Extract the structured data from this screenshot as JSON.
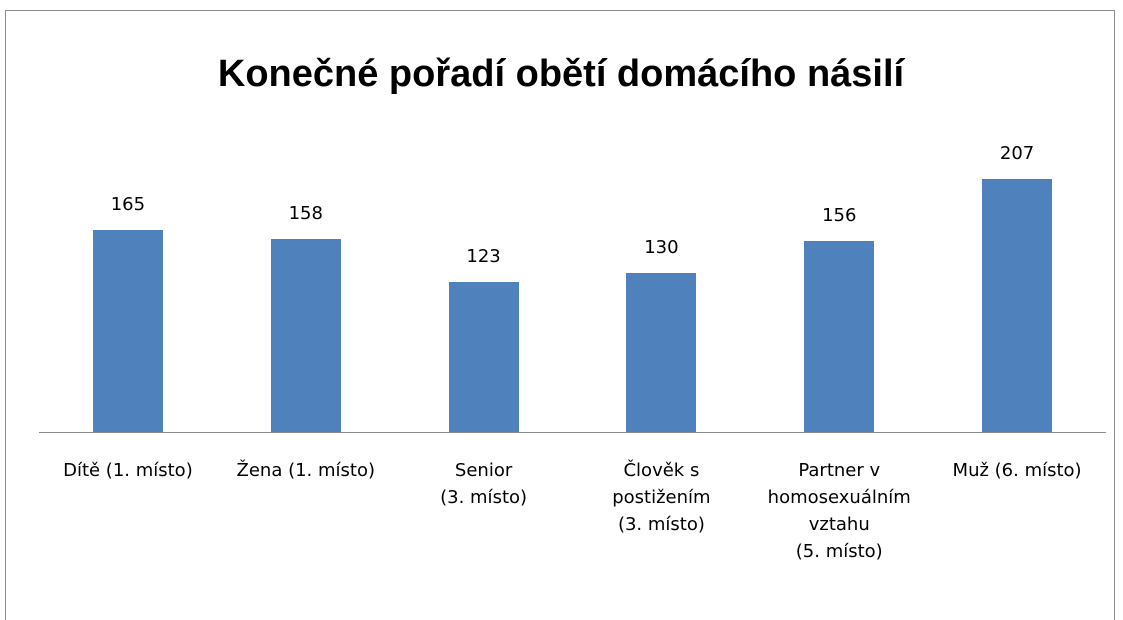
{
  "chart_data": {
    "type": "bar",
    "title": "Konečné pořadí obětí domácího násilí",
    "categories": [
      "Dítě (1. místo)",
      "Žena (1. místo)",
      "Senior\n(3. místo)",
      "Člověk s\npostižením\n(3. místo)",
      "Partner v\nhomosexuálním\nvztahu\n(5. místo)",
      "Muž (6. místo)"
    ],
    "values": [
      165,
      158,
      123,
      130,
      156,
      207
    ],
    "color": "#4f81bd"
  }
}
